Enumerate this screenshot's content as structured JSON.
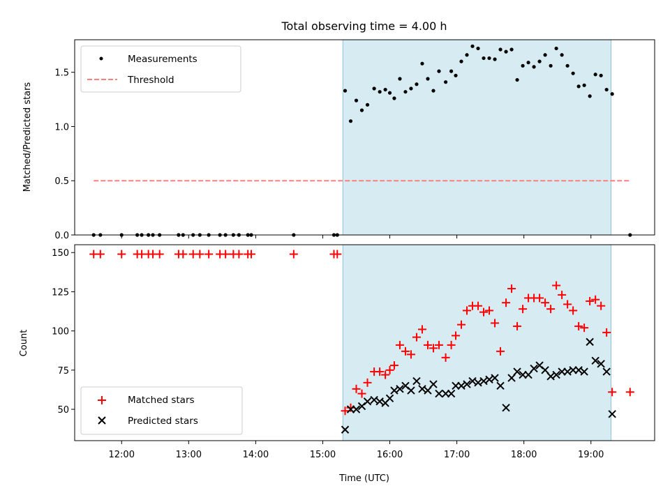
{
  "chart_data": [
    {
      "type": "scatter",
      "title": "Total observing time = 4.00 h",
      "xlabel": "",
      "ylabel": "Matched/Predicted stars",
      "ylim": [
        0,
        1.8
      ],
      "yticks": [
        "0.0",
        "0.5",
        "1.0",
        "1.5"
      ],
      "ytick_values": [
        0,
        0.5,
        1.0,
        1.5
      ],
      "xlim": [
        "11:18",
        "19:57"
      ],
      "shaded_interval": [
        "15:18",
        "19:18"
      ],
      "legend": {
        "placement": "top-left",
        "entries": [
          "Measurements",
          "Threshold"
        ]
      },
      "threshold": {
        "name": "Threshold",
        "value": 0.5,
        "x_start": "11:35",
        "x_end": "19:35",
        "color": "#ff7f7f"
      },
      "series": [
        {
          "name": "Measurements",
          "color": "#000000",
          "points": [
            [
              "11:35",
              0
            ],
            [
              "11:41",
              0
            ],
            [
              "12:00",
              0
            ],
            [
              "12:14",
              0
            ],
            [
              "12:18",
              0
            ],
            [
              "12:24",
              0
            ],
            [
              "12:28",
              0
            ],
            [
              "12:34",
              0
            ],
            [
              "12:51",
              0
            ],
            [
              "12:55",
              0
            ],
            [
              "13:04",
              0
            ],
            [
              "13:10",
              0
            ],
            [
              "13:18",
              0
            ],
            [
              "13:28",
              0
            ],
            [
              "13:33",
              0
            ],
            [
              "13:40",
              0
            ],
            [
              "13:45",
              0
            ],
            [
              "13:53",
              0
            ],
            [
              "13:56",
              0
            ],
            [
              "14:34",
              0
            ],
            [
              "15:10",
              0
            ],
            [
              "15:13",
              0
            ],
            [
              "15:20",
              1.33
            ],
            [
              "15:25",
              1.05
            ],
            [
              "15:30",
              1.24
            ],
            [
              "15:35",
              1.15
            ],
            [
              "15:40",
              1.2
            ],
            [
              "15:46",
              1.35
            ],
            [
              "15:51",
              1.32
            ],
            [
              "15:56",
              1.34
            ],
            [
              "16:00",
              1.31
            ],
            [
              "16:04",
              1.26
            ],
            [
              "16:09",
              1.44
            ],
            [
              "16:14",
              1.32
            ],
            [
              "16:19",
              1.35
            ],
            [
              "16:24",
              1.39
            ],
            [
              "16:29",
              1.58
            ],
            [
              "16:34",
              1.44
            ],
            [
              "16:39",
              1.33
            ],
            [
              "16:44",
              1.51
            ],
            [
              "16:50",
              1.41
            ],
            [
              "16:55",
              1.51
            ],
            [
              "16:59",
              1.47
            ],
            [
              "17:04",
              1.6
            ],
            [
              "17:09",
              1.66
            ],
            [
              "17:14",
              1.74
            ],
            [
              "17:19",
              1.72
            ],
            [
              "17:24",
              1.63
            ],
            [
              "17:29",
              1.63
            ],
            [
              "17:34",
              1.62
            ],
            [
              "17:39",
              1.71
            ],
            [
              "17:44",
              1.69
            ],
            [
              "17:49",
              1.71
            ],
            [
              "17:54",
              1.43
            ],
            [
              "17:59",
              1.56
            ],
            [
              "18:04",
              1.59
            ],
            [
              "18:09",
              1.55
            ],
            [
              "18:14",
              1.6
            ],
            [
              "18:19",
              1.66
            ],
            [
              "18:24",
              1.56
            ],
            [
              "18:29",
              1.72
            ],
            [
              "18:34",
              1.66
            ],
            [
              "18:39",
              1.56
            ],
            [
              "18:44",
              1.49
            ],
            [
              "18:49",
              1.37
            ],
            [
              "18:54",
              1.38
            ],
            [
              "18:59",
              1.28
            ],
            [
              "19:04",
              1.48
            ],
            [
              "19:09",
              1.47
            ],
            [
              "19:14",
              1.34
            ],
            [
              "19:19",
              1.3
            ],
            [
              "19:35",
              0
            ]
          ]
        }
      ]
    },
    {
      "type": "scatter",
      "title": "",
      "xlabel": "Time (UTC)",
      "ylabel": "Count",
      "ylim": [
        30,
        155
      ],
      "yticks": [
        "50",
        "75",
        "100",
        "125",
        "150"
      ],
      "ytick_values": [
        50,
        75,
        100,
        125,
        150
      ],
      "xlim": [
        "11:18",
        "19:57"
      ],
      "xticks": [
        "12:00",
        "13:00",
        "14:00",
        "15:00",
        "16:00",
        "17:00",
        "18:00",
        "19:00"
      ],
      "shaded_interval": [
        "15:18",
        "19:18"
      ],
      "legend": {
        "placement": "bottom-left",
        "entries": [
          "Matched stars",
          "Predicted stars"
        ]
      },
      "series": [
        {
          "name": "Matched stars",
          "marker": "+",
          "color": "#ff0000",
          "points": [
            [
              "11:35",
              149
            ],
            [
              "11:41",
              149
            ],
            [
              "12:00",
              149
            ],
            [
              "12:14",
              149
            ],
            [
              "12:18",
              149
            ],
            [
              "12:24",
              149
            ],
            [
              "12:28",
              149
            ],
            [
              "12:34",
              149
            ],
            [
              "12:51",
              149
            ],
            [
              "12:55",
              149
            ],
            [
              "13:04",
              149
            ],
            [
              "13:10",
              149
            ],
            [
              "13:18",
              149
            ],
            [
              "13:28",
              149
            ],
            [
              "13:33",
              149
            ],
            [
              "13:40",
              149
            ],
            [
              "13:45",
              149
            ],
            [
              "13:53",
              149
            ],
            [
              "13:56",
              149
            ],
            [
              "14:34",
              149
            ],
            [
              "15:10",
              149
            ],
            [
              "15:13",
              149
            ],
            [
              "15:20",
              49
            ],
            [
              "15:25",
              51
            ],
            [
              "15:30",
              63
            ],
            [
              "15:35",
              60
            ],
            [
              "15:40",
              67
            ],
            [
              "15:46",
              74
            ],
            [
              "15:51",
              74
            ],
            [
              "15:56",
              72
            ],
            [
              "16:00",
              75
            ],
            [
              "16:04",
              78
            ],
            [
              "16:09",
              91
            ],
            [
              "16:14",
              87
            ],
            [
              "16:19",
              85
            ],
            [
              "16:24",
              96
            ],
            [
              "16:29",
              101
            ],
            [
              "16:34",
              91
            ],
            [
              "16:39",
              89
            ],
            [
              "16:44",
              91
            ],
            [
              "16:50",
              83
            ],
            [
              "16:55",
              91
            ],
            [
              "16:59",
              97
            ],
            [
              "17:04",
              104
            ],
            [
              "17:09",
              113
            ],
            [
              "17:14",
              116
            ],
            [
              "17:19",
              116
            ],
            [
              "17:24",
              112
            ],
            [
              "17:29",
              113
            ],
            [
              "17:34",
              105
            ],
            [
              "17:39",
              87
            ],
            [
              "17:44",
              118
            ],
            [
              "17:49",
              127
            ],
            [
              "17:54",
              103
            ],
            [
              "17:59",
              114
            ],
            [
              "18:04",
              121
            ],
            [
              "18:09",
              121
            ],
            [
              "18:14",
              121
            ],
            [
              "18:19",
              118
            ],
            [
              "18:24",
              114
            ],
            [
              "18:29",
              129
            ],
            [
              "18:34",
              123
            ],
            [
              "18:39",
              117
            ],
            [
              "18:44",
              113
            ],
            [
              "18:49",
              103
            ],
            [
              "18:54",
              102
            ],
            [
              "18:59",
              119
            ],
            [
              "19:04",
              120
            ],
            [
              "19:09",
              116
            ],
            [
              "19:14",
              99
            ],
            [
              "19:19",
              61
            ],
            [
              "19:35",
              61
            ]
          ]
        },
        {
          "name": "Predicted stars",
          "marker": "x",
          "color": "#000000",
          "points": [
            [
              "15:20",
              37
            ],
            [
              "15:25",
              50
            ],
            [
              "15:30",
              50
            ],
            [
              "15:35",
              52
            ],
            [
              "15:40",
              55
            ],
            [
              "15:46",
              56
            ],
            [
              "15:51",
              55
            ],
            [
              "15:56",
              54
            ],
            [
              "16:00",
              57
            ],
            [
              "16:04",
              62
            ],
            [
              "16:09",
              63
            ],
            [
              "16:14",
              65
            ],
            [
              "16:19",
              62
            ],
            [
              "16:24",
              68
            ],
            [
              "16:29",
              63
            ],
            [
              "16:34",
              62
            ],
            [
              "16:39",
              66
            ],
            [
              "16:44",
              60
            ],
            [
              "16:50",
              60
            ],
            [
              "16:55",
              60
            ],
            [
              "16:59",
              65
            ],
            [
              "17:04",
              65
            ],
            [
              "17:09",
              66
            ],
            [
              "17:14",
              68
            ],
            [
              "17:19",
              67
            ],
            [
              "17:24",
              68
            ],
            [
              "17:29",
              69
            ],
            [
              "17:34",
              70
            ],
            [
              "17:39",
              65
            ],
            [
              "17:44",
              51
            ],
            [
              "17:49",
              70
            ],
            [
              "17:54",
              74
            ],
            [
              "17:59",
              72
            ],
            [
              "18:04",
              72
            ],
            [
              "18:09",
              76
            ],
            [
              "18:14",
              78
            ],
            [
              "18:19",
              75
            ],
            [
              "18:24",
              71
            ],
            [
              "18:29",
              72
            ],
            [
              "18:34",
              74
            ],
            [
              "18:39",
              74
            ],
            [
              "18:44",
              75
            ],
            [
              "18:49",
              75
            ],
            [
              "18:54",
              74
            ],
            [
              "18:59",
              93
            ],
            [
              "19:04",
              81
            ],
            [
              "19:09",
              79
            ],
            [
              "19:14",
              74
            ],
            [
              "19:19",
              47
            ]
          ]
        }
      ]
    }
  ]
}
